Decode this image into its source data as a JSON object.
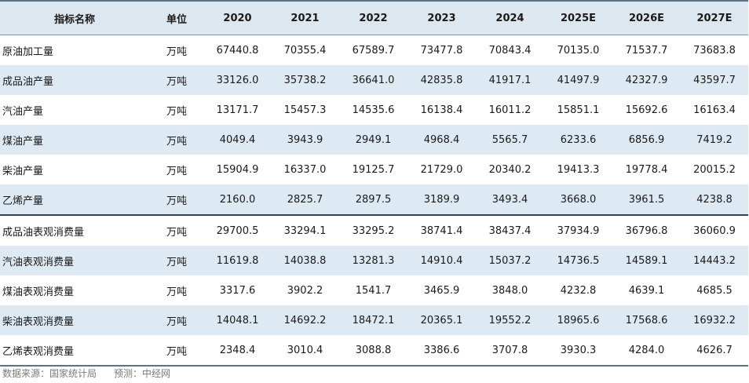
{
  "table": {
    "headers": [
      "指标名称",
      "单位",
      "2020",
      "2021",
      "2022",
      "2023",
      "2024",
      "2025E",
      "2026E",
      "2027E"
    ],
    "rows": [
      [
        "原油加工量",
        "万吨",
        "67440.8",
        "70355.4",
        "67589.7",
        "73477.8",
        "70843.4",
        "70135.0",
        "71537.7",
        "73683.8"
      ],
      [
        "成品油产量",
        "万吨",
        "33126.0",
        "35738.2",
        "36641.0",
        "42835.8",
        "41917.1",
        "41497.9",
        "42327.9",
        "43597.7"
      ],
      [
        "汽油产量",
        "万吨",
        "13171.7",
        "15457.3",
        "14535.6",
        "16138.4",
        "16011.2",
        "15851.1",
        "15692.6",
        "16163.4"
      ],
      [
        "煤油产量",
        "万吨",
        "4049.4",
        "3943.9",
        "2949.1",
        "4968.4",
        "5565.7",
        "6233.6",
        "6856.9",
        "7419.2"
      ],
      [
        "柴油产量",
        "万吨",
        "15904.9",
        "16337.0",
        "19125.7",
        "21729.0",
        "20340.2",
        "19413.3",
        "19778.4",
        "20015.2"
      ],
      [
        "乙烯产量",
        "万吨",
        "2160.0",
        "2825.7",
        "2897.5",
        "3189.9",
        "3493.4",
        "3668.0",
        "3961.5",
        "4238.8"
      ],
      [
        "成品油表观消费量",
        "万吨",
        "29700.5",
        "33294.1",
        "33295.2",
        "38741.4",
        "38437.4",
        "37934.9",
        "36796.8",
        "36060.9"
      ],
      [
        "汽油表观消费量",
        "万吨",
        "11619.8",
        "14038.8",
        "13281.3",
        "14910.4",
        "15037.2",
        "14736.5",
        "14589.1",
        "14443.2"
      ],
      [
        "煤油表观消费量",
        "万吨",
        "3317.6",
        "3902.2",
        "1541.7",
        "3465.9",
        "3848.0",
        "4232.8",
        "4639.1",
        "4685.5"
      ],
      [
        "柴油表观消费量",
        "万吨",
        "14048.1",
        "14692.2",
        "18472.1",
        "20365.1",
        "19552.2",
        "18965.6",
        "17568.6",
        "16932.2"
      ],
      [
        "乙烯表观消费量",
        "万吨",
        "2348.4",
        "3010.4",
        "3088.8",
        "3386.6",
        "3707.8",
        "3930.3",
        "4284.0",
        "4626.7"
      ]
    ]
  },
  "footer": {
    "source": "数据来源：国家统计局",
    "forecast": "预测：中经网"
  }
}
